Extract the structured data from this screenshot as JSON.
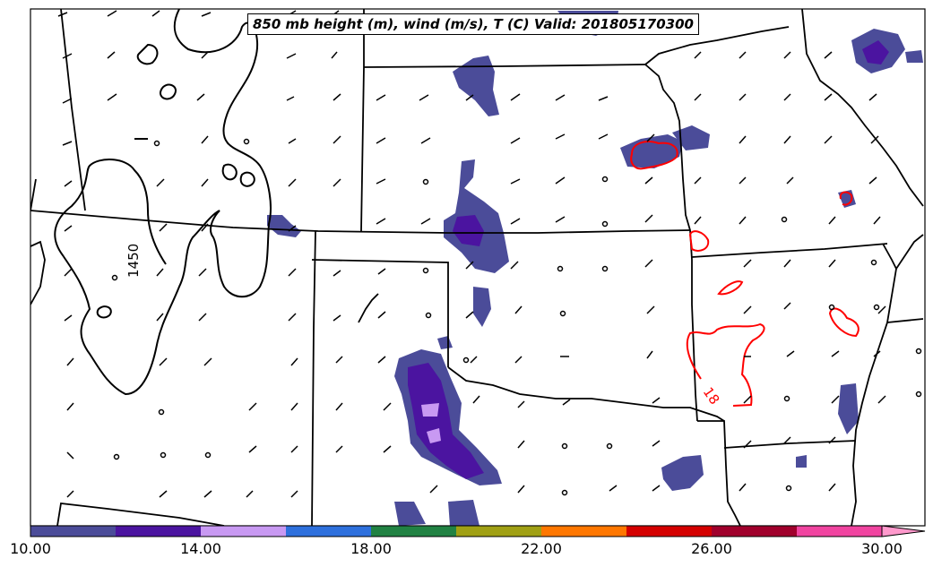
{
  "map": {
    "title": "850 mb height (m), wind (m/s), T (C) Valid: 201805170300",
    "height_contour_label": "1450",
    "temperature_contour_label": "18",
    "height_contour_color": "#000000",
    "temperature_contour_color": "#ff0000"
  },
  "colorbar": {
    "tick_labels": [
      "10.00",
      "14.00",
      "18.00",
      "22.00",
      "26.00",
      "30.00"
    ],
    "bins": [
      {
        "min": 10,
        "max": 12,
        "color": "#4b4c99"
      },
      {
        "min": 12,
        "max": 14,
        "color": "#4b14a0"
      },
      {
        "min": 14,
        "max": 16,
        "color": "#c899f2"
      },
      {
        "min": 16,
        "max": 18,
        "color": "#2e70dd"
      },
      {
        "min": 18,
        "max": 20,
        "color": "#218243"
      },
      {
        "min": 20,
        "max": 22,
        "color": "#a0a014"
      },
      {
        "min": 22,
        "max": 24,
        "color": "#ff7700"
      },
      {
        "min": 24,
        "max": 26,
        "color": "#d40000"
      },
      {
        "min": 26,
        "max": 28,
        "color": "#a0002c"
      },
      {
        "min": 28,
        "max": 30,
        "color": "#f044a0"
      }
    ],
    "extend_color": "#ff99cc"
  }
}
